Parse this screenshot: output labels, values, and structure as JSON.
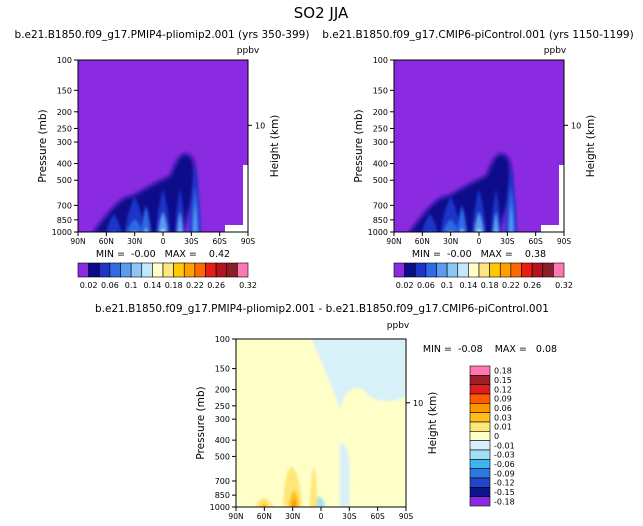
{
  "figure_title": "SO2 JJA",
  "colors": {
    "background_purple": "#8A2BE2",
    "diff_background": "#FFFFC8",
    "diff_light_blue": "#D8F0F8",
    "diff_orange": "#FFA500",
    "diff_yellow": "#FFD24A"
  },
  "chart_data": [
    {
      "type": "heatmap",
      "panel": "top-left",
      "title": "b.e21.B1850.f09_g17.PMIP4-pliomip2.001 (yrs 350-399)",
      "unit_label": "ppbv",
      "ylabel": "Pressure (mb)",
      "ylabel_right": "Height (km)",
      "x_ticks": [
        "90N",
        "60N",
        "30N",
        "0",
        "30S",
        "60S",
        "90S"
      ],
      "y_ticks": [
        100,
        150,
        200,
        250,
        300,
        400,
        500,
        700,
        850,
        1000
      ],
      "y_scale": "log",
      "y_range": [
        1000,
        100
      ],
      "right_ticks": [
        "10"
      ],
      "min_max_text": "MIN =  -0.00   MAX =    0.42",
      "min": -0.0,
      "max": 0.42,
      "levels": [
        0.02,
        0.04,
        0.06,
        0.08,
        0.1,
        0.12,
        0.14,
        0.16,
        0.18,
        0.2,
        0.22,
        0.24,
        0.26,
        0.28,
        0.3,
        0.32
      ],
      "colorbar_labels": [
        "0.02",
        "0.06",
        "0.1",
        "0.14",
        "0.18",
        "0.22",
        "0.26",
        "0.32"
      ]
    },
    {
      "type": "heatmap",
      "panel": "top-right",
      "title": "b.e21.B1850.f09_g17.CMIP6-piControl.001 (yrs 1150-1199)",
      "unit_label": "ppbv",
      "ylabel": "Pressure (mb)",
      "ylabel_right": "Height (km)",
      "x_ticks": [
        "90N",
        "60N",
        "30N",
        "0",
        "30S",
        "60S",
        "90S"
      ],
      "y_ticks": [
        100,
        150,
        200,
        250,
        300,
        400,
        500,
        700,
        850,
        1000
      ],
      "y_scale": "log",
      "y_range": [
        1000,
        100
      ],
      "right_ticks": [
        "10"
      ],
      "min_max_text": "MIN =  -0.00   MAX =    0.38",
      "min": -0.0,
      "max": 0.38,
      "levels": [
        0.02,
        0.04,
        0.06,
        0.08,
        0.1,
        0.12,
        0.14,
        0.16,
        0.18,
        0.2,
        0.22,
        0.24,
        0.26,
        0.28,
        0.3,
        0.32
      ],
      "colorbar_labels": [
        "0.02",
        "0.06",
        "0.1",
        "0.14",
        "0.18",
        "0.22",
        "0.26",
        "0.32"
      ]
    },
    {
      "type": "heatmap",
      "panel": "bottom-center",
      "title": "b.e21.B1850.f09_g17.PMIP4-pliomip2.001 - b.e21.B1850.f09_g17.CMIP6-piControl.001",
      "unit_label": "ppbv",
      "ylabel": "Pressure (mb)",
      "ylabel_right": "Height (km)",
      "x_ticks": [
        "90N",
        "60N",
        "30N",
        "0",
        "30S",
        "60S",
        "90S"
      ],
      "y_ticks": [
        100,
        150,
        200,
        250,
        300,
        400,
        500,
        700,
        850,
        1000
      ],
      "y_scale": "log",
      "y_range": [
        1000,
        100
      ],
      "right_ticks": [
        "10"
      ],
      "min_max_text": "MIN =  -0.08    MAX =   0.08",
      "min": -0.08,
      "max": 0.08,
      "levels": [
        0.18,
        0.15,
        0.12,
        0.09,
        0.06,
        0.03,
        0.01,
        0,
        -0.01,
        -0.03,
        -0.06,
        -0.09,
        -0.12,
        -0.15,
        -0.18
      ],
      "colorbar_labels": [
        "0.18",
        "0.15",
        "0.12",
        "0.09",
        "0.06",
        "0.03",
        "0.01",
        "0",
        "-0.01",
        "-0.03",
        "-0.06",
        "-0.09",
        "-0.12",
        "-0.15",
        "-0.18"
      ]
    }
  ]
}
